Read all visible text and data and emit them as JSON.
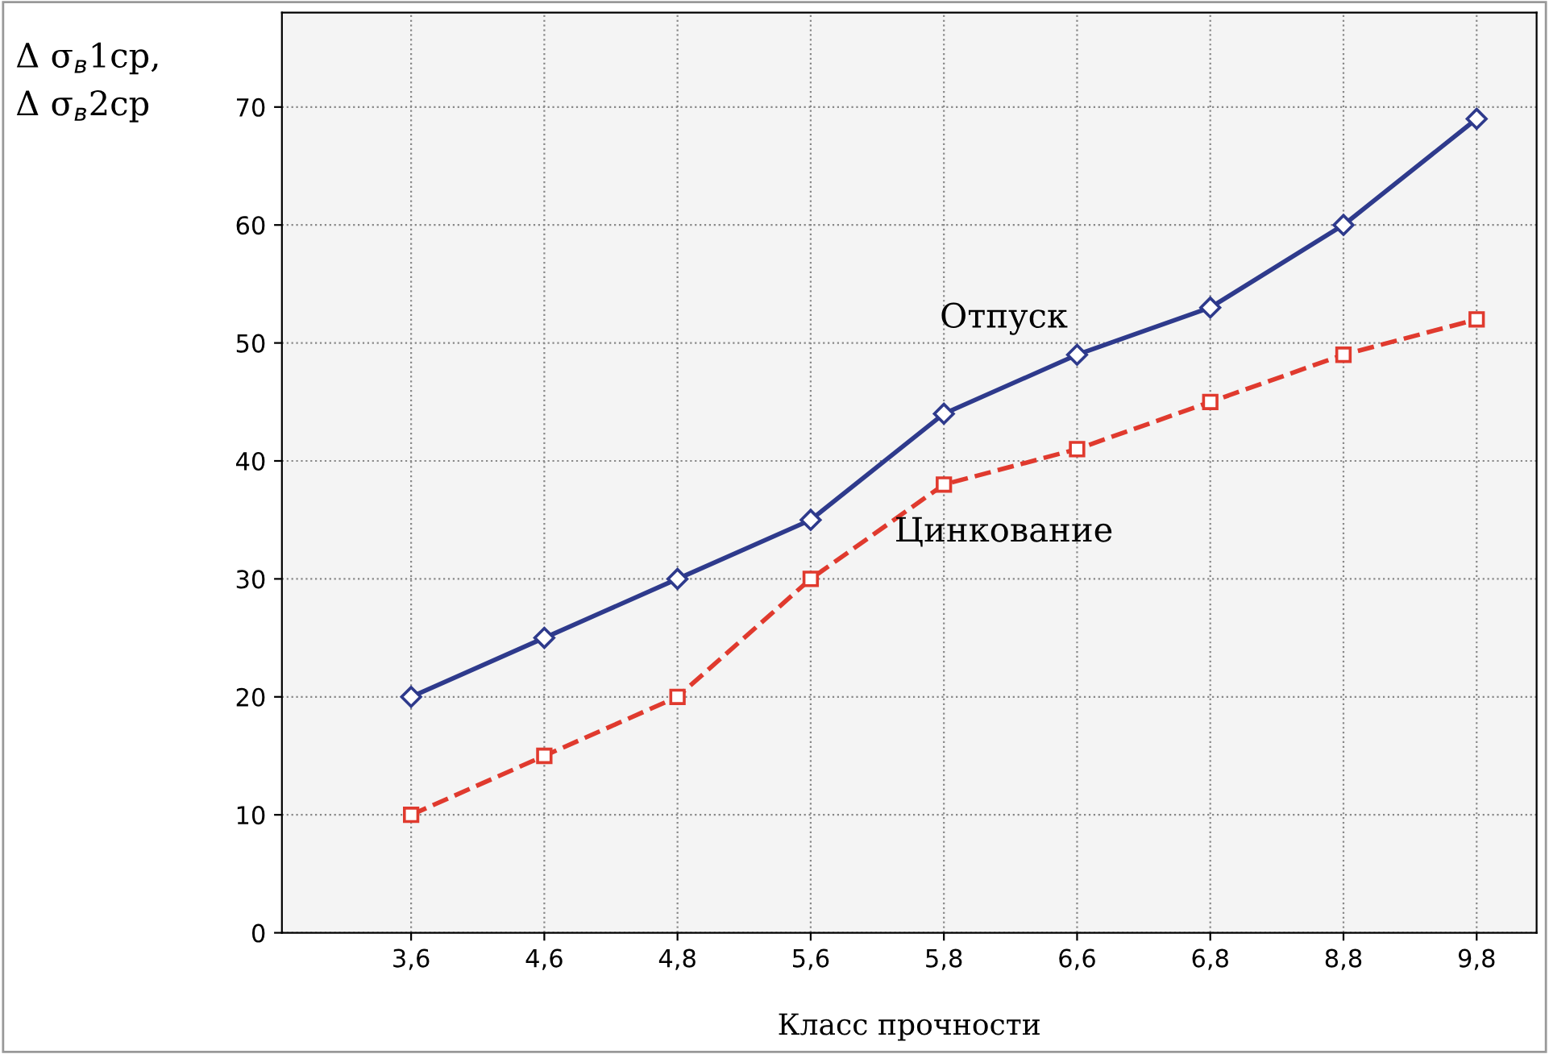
{
  "chart_data": {
    "type": "line",
    "xlabel": "Класс прочности",
    "ylabel": "Δ σ$_{в}$1ср,\nΔ σ$_{в}$2ср",
    "categories": [
      "3,6",
      "4,6",
      "4,8",
      "5,6",
      "5,8",
      "6,6",
      "6,8",
      "8,8",
      "9,8"
    ],
    "series": [
      {
        "name": "Отпуск",
        "color": "#2e3a8c",
        "values": [
          20,
          25,
          30,
          35,
          44,
          49,
          53,
          60,
          69
        ],
        "marker": "diamond",
        "line_style": "solid"
      },
      {
        "name": "Цинкование",
        "color": "#e03a2e",
        "values": [
          10,
          15,
          20,
          30,
          38,
          41,
          45,
          49,
          52
        ],
        "marker": "square",
        "line_style": "dashed"
      }
    ],
    "ylim": [
      0,
      78
    ],
    "yticks": [
      0,
      10,
      20,
      30,
      40,
      50,
      60,
      70
    ],
    "grid": true,
    "legend": false
  }
}
